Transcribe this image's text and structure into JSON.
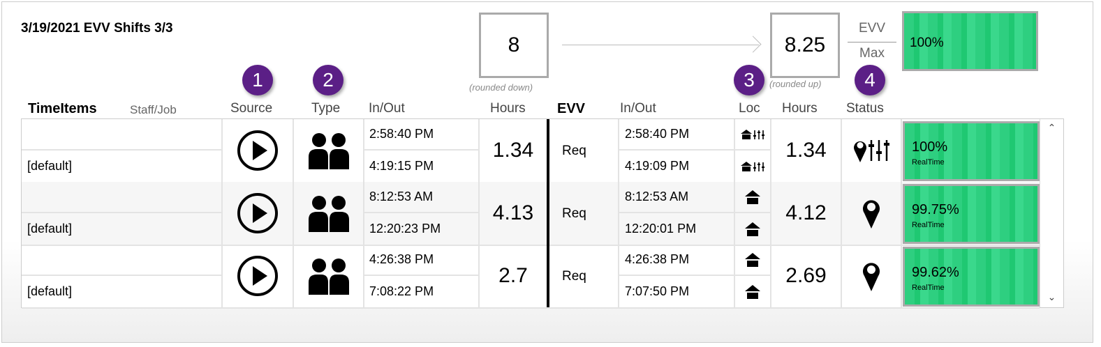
{
  "title": "3/19/2021 EVV Shifts 3/3",
  "summary": {
    "rounded_down_value": "8",
    "rounded_down_caption": "(rounded down)",
    "rounded_up_value": "8.25",
    "rounded_up_caption": "(rounded up)",
    "evv_label": "EVV",
    "max_label": "Max",
    "overall_percent": "100%",
    "overall_fill": 1.0
  },
  "badges": [
    "1",
    "2",
    "3",
    "4"
  ],
  "headers": {
    "timeitems": "TimeItems",
    "staff_job": "Staff/Job",
    "source": "Source",
    "type": "Type",
    "inout": "In/Out",
    "hours": "Hours",
    "evv": "EVV",
    "evv_inout": "In/Out",
    "loc": "Loc",
    "evv_hours": "Hours",
    "status": "Status"
  },
  "colors": {
    "badge": "#5b1f86",
    "progress": "#2ecf80"
  },
  "rows": [
    {
      "job": "[default]",
      "source_icon": "play-circle-icon",
      "type_icon": "people-icon",
      "in": "2:58:40 PM",
      "out": "4:19:15 PM",
      "hours": "1.34",
      "evv": "Req",
      "evv_in": "2:58:40 PM",
      "evv_out": "4:19:09 PM",
      "loc_icon": "home-adjust-icon",
      "evv_hours": "1.34",
      "status_icon": "pin-adjust-icon",
      "percent": "100%",
      "fill": 1.0,
      "mode": "RealTime"
    },
    {
      "job": "[default]",
      "source_icon": "play-circle-icon",
      "type_icon": "people-icon",
      "in": "8:12:53 AM",
      "out": "12:20:23 PM",
      "hours": "4.13",
      "evv": "Req",
      "evv_in": "8:12:53 AM",
      "evv_out": "12:20:01 PM",
      "loc_icon": "home-icon",
      "evv_hours": "4.12",
      "status_icon": "pin-icon",
      "percent": "99.75%",
      "fill": 0.9975,
      "mode": "RealTime"
    },
    {
      "job": "[default]",
      "source_icon": "play-circle-icon",
      "type_icon": "people-icon",
      "in": "4:26:38 PM",
      "out": "7:08:22 PM",
      "hours": "2.7",
      "evv": "Req",
      "evv_in": "4:26:38 PM",
      "evv_out": "7:07:50 PM",
      "loc_icon": "home-icon",
      "evv_hours": "2.69",
      "status_icon": "pin-icon",
      "percent": "99.62%",
      "fill": 0.9962,
      "mode": "RealTime"
    }
  ]
}
